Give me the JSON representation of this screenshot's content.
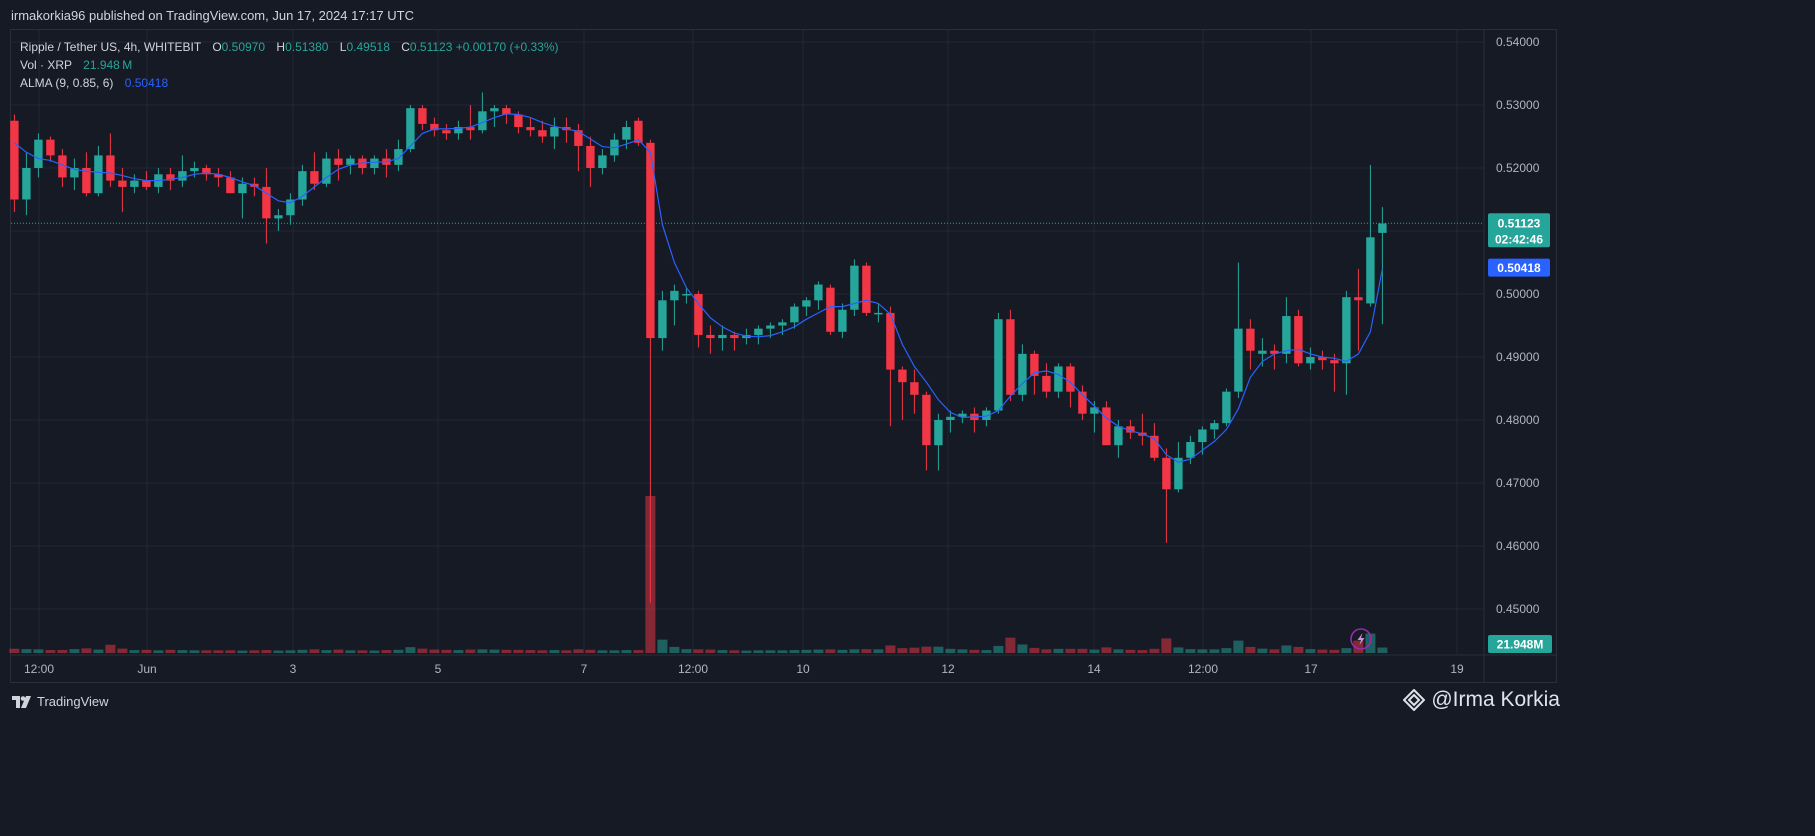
{
  "publisher": "irmakorkia96 published on TradingView.com, Jun 17, 2024 17:17 UTC",
  "legend": {
    "symbol": "Ripple / Tether US, 4h, WHITEBIT",
    "o_label": "O",
    "o_val": "0.50970",
    "h_label": "H",
    "h_val": "0.51380",
    "l_label": "L",
    "l_val": "0.49518",
    "c_label": "C",
    "c_val": "0.51123",
    "change": "+0.00170 (+0.33%)",
    "vol_label": "Vol · XRP",
    "vol_val": "21.948 M",
    "alma_label": "ALMA (9, 0.85, 6)",
    "alma_val": "0.50418"
  },
  "tags": {
    "price": "0.51123",
    "countdown": "02:42:46",
    "alma": "0.50418",
    "volume": "21.948M"
  },
  "footer": {
    "brand": "TradingView",
    "watermark": "@Irma Korkia"
  },
  "colors": {
    "up": "#26a69a",
    "down": "#f23645",
    "alma": "#2962ff",
    "grid": "#232733"
  },
  "chart_data": {
    "type": "candlestick",
    "symbol": "XRPUSDT",
    "interval": "4h",
    "ylim": [
      0.443,
      0.542
    ],
    "y_ticks": [
      "0.54000",
      "0.53000",
      "0.52000",
      "0.51000",
      "0.50000",
      "0.49000",
      "0.48000",
      "0.47000",
      "0.46000",
      "0.45000"
    ],
    "x_ticks": [
      "12:00",
      "Jun",
      "3",
      "5",
      "7",
      "12:00",
      "10",
      "12",
      "14",
      "12:00",
      "17",
      "19"
    ],
    "grid": true,
    "ohlc": [
      [
        0.5275,
        0.5285,
        0.513,
        0.515
      ],
      [
        0.515,
        0.5225,
        0.5125,
        0.52
      ],
      [
        0.52,
        0.5255,
        0.5185,
        0.5245
      ],
      [
        0.5245,
        0.525,
        0.521,
        0.522
      ],
      [
        0.522,
        0.523,
        0.517,
        0.5185
      ],
      [
        0.5185,
        0.5215,
        0.5165,
        0.52
      ],
      [
        0.52,
        0.5225,
        0.5155,
        0.516
      ],
      [
        0.516,
        0.5235,
        0.5155,
        0.522
      ],
      [
        0.522,
        0.5255,
        0.517,
        0.518
      ],
      [
        0.518,
        0.52,
        0.513,
        0.517
      ],
      [
        0.517,
        0.519,
        0.516,
        0.518
      ],
      [
        0.518,
        0.5195,
        0.5165,
        0.517
      ],
      [
        0.517,
        0.52,
        0.516,
        0.519
      ],
      [
        0.519,
        0.52,
        0.5165,
        0.518
      ],
      [
        0.518,
        0.522,
        0.517,
        0.5195
      ],
      [
        0.5195,
        0.521,
        0.5185,
        0.52
      ],
      [
        0.52,
        0.5205,
        0.518,
        0.519
      ],
      [
        0.519,
        0.52,
        0.517,
        0.5185
      ],
      [
        0.5185,
        0.5195,
        0.516,
        0.516
      ],
      [
        0.516,
        0.5185,
        0.512,
        0.5175
      ],
      [
        0.5175,
        0.5185,
        0.5155,
        0.517
      ],
      [
        0.517,
        0.52,
        0.508,
        0.512
      ],
      [
        0.512,
        0.5135,
        0.51,
        0.5125
      ],
      [
        0.5125,
        0.516,
        0.511,
        0.515
      ],
      [
        0.515,
        0.5205,
        0.514,
        0.5195
      ],
      [
        0.5195,
        0.5225,
        0.5165,
        0.5175
      ],
      [
        0.5175,
        0.5225,
        0.517,
        0.5215
      ],
      [
        0.5215,
        0.523,
        0.518,
        0.5205
      ],
      [
        0.5205,
        0.522,
        0.519,
        0.5215
      ],
      [
        0.5215,
        0.522,
        0.519,
        0.52
      ],
      [
        0.52,
        0.522,
        0.519,
        0.5215
      ],
      [
        0.5215,
        0.523,
        0.5185,
        0.5205
      ],
      [
        0.5205,
        0.5245,
        0.5195,
        0.523
      ],
      [
        0.523,
        0.53,
        0.5225,
        0.5295
      ],
      [
        0.5295,
        0.53,
        0.526,
        0.527
      ],
      [
        0.527,
        0.528,
        0.525,
        0.526
      ],
      [
        0.526,
        0.527,
        0.5245,
        0.5255
      ],
      [
        0.5255,
        0.5275,
        0.5245,
        0.5265
      ],
      [
        0.5265,
        0.53,
        0.5245,
        0.526
      ],
      [
        0.526,
        0.532,
        0.5255,
        0.529
      ],
      [
        0.529,
        0.53,
        0.5265,
        0.5295
      ],
      [
        0.5295,
        0.53,
        0.527,
        0.5285
      ],
      [
        0.5285,
        0.529,
        0.5255,
        0.5265
      ],
      [
        0.5265,
        0.528,
        0.525,
        0.526
      ],
      [
        0.526,
        0.5275,
        0.524,
        0.525
      ],
      [
        0.525,
        0.528,
        0.523,
        0.5265
      ],
      [
        0.5265,
        0.528,
        0.524,
        0.526
      ],
      [
        0.526,
        0.527,
        0.5195,
        0.5235
      ],
      [
        0.5235,
        0.525,
        0.517,
        0.52
      ],
      [
        0.52,
        0.523,
        0.519,
        0.522
      ],
      [
        0.522,
        0.5255,
        0.521,
        0.5245
      ],
      [
        0.5245,
        0.5275,
        0.523,
        0.5265
      ],
      [
        0.5275,
        0.528,
        0.5235,
        0.524
      ],
      [
        0.524,
        0.5245,
        0.451,
        0.493
      ],
      [
        0.493,
        0.5005,
        0.491,
        0.499
      ],
      [
        0.499,
        0.5015,
        0.495,
        0.5005
      ],
      [
        0.5,
        0.501,
        0.4985,
        0.5
      ],
      [
        0.5,
        0.5005,
        0.4915,
        0.4935
      ],
      [
        0.4935,
        0.495,
        0.4905,
        0.493
      ],
      [
        0.493,
        0.495,
        0.491,
        0.4935
      ],
      [
        0.4935,
        0.494,
        0.491,
        0.493
      ],
      [
        0.493,
        0.4945,
        0.492,
        0.4935
      ],
      [
        0.4935,
        0.495,
        0.492,
        0.4945
      ],
      [
        0.4945,
        0.4955,
        0.493,
        0.495
      ],
      [
        0.495,
        0.496,
        0.4935,
        0.4955
      ],
      [
        0.4955,
        0.4985,
        0.4945,
        0.498
      ],
      [
        0.498,
        0.4995,
        0.4965,
        0.499
      ],
      [
        0.499,
        0.502,
        0.4975,
        0.5015
      ],
      [
        0.501,
        0.5015,
        0.4935,
        0.494
      ],
      [
        0.494,
        0.4985,
        0.493,
        0.4975
      ],
      [
        0.4975,
        0.5055,
        0.4965,
        0.5045
      ],
      [
        0.5045,
        0.505,
        0.4965,
        0.497
      ],
      [
        0.497,
        0.4985,
        0.4955,
        0.497
      ],
      [
        0.497,
        0.498,
        0.479,
        0.488
      ],
      [
        0.488,
        0.4885,
        0.48,
        0.486
      ],
      [
        0.486,
        0.488,
        0.481,
        0.484
      ],
      [
        0.484,
        0.4845,
        0.472,
        0.476
      ],
      [
        0.476,
        0.481,
        0.472,
        0.48
      ],
      [
        0.48,
        0.4815,
        0.478,
        0.4805
      ],
      [
        0.4805,
        0.4815,
        0.4795,
        0.481
      ],
      [
        0.481,
        0.482,
        0.478,
        0.48
      ],
      [
        0.48,
        0.482,
        0.479,
        0.4815
      ],
      [
        0.4815,
        0.497,
        0.481,
        0.496
      ],
      [
        0.496,
        0.4975,
        0.483,
        0.484
      ],
      [
        0.484,
        0.492,
        0.483,
        0.4905
      ],
      [
        0.4905,
        0.491,
        0.484,
        0.487
      ],
      [
        0.487,
        0.489,
        0.4835,
        0.4845
      ],
      [
        0.4845,
        0.489,
        0.4835,
        0.4885
      ],
      [
        0.4885,
        0.489,
        0.482,
        0.4845
      ],
      [
        0.4845,
        0.4855,
        0.48,
        0.481
      ],
      [
        0.481,
        0.483,
        0.478,
        0.482
      ],
      [
        0.482,
        0.483,
        0.476,
        0.476
      ],
      [
        0.476,
        0.48,
        0.474,
        0.479
      ],
      [
        0.479,
        0.48,
        0.477,
        0.478
      ],
      [
        0.478,
        0.481,
        0.476,
        0.4775
      ],
      [
        0.4775,
        0.4795,
        0.4735,
        0.474
      ],
      [
        0.474,
        0.4755,
        0.4605,
        0.469
      ],
      [
        0.469,
        0.4765,
        0.4685,
        0.474
      ],
      [
        0.474,
        0.4775,
        0.473,
        0.4765
      ],
      [
        0.4765,
        0.479,
        0.4745,
        0.4785
      ],
      [
        0.4785,
        0.48,
        0.477,
        0.4795
      ],
      [
        0.4795,
        0.485,
        0.479,
        0.4845
      ],
      [
        0.4845,
        0.505,
        0.4835,
        0.4945
      ],
      [
        0.4945,
        0.496,
        0.488,
        0.491
      ],
      [
        0.4905,
        0.493,
        0.4885,
        0.491
      ],
      [
        0.491,
        0.492,
        0.488,
        0.4905
      ],
      [
        0.4905,
        0.4995,
        0.489,
        0.4965
      ],
      [
        0.4965,
        0.4975,
        0.4885,
        0.489
      ],
      [
        0.489,
        0.4915,
        0.488,
        0.49
      ],
      [
        0.49,
        0.491,
        0.488,
        0.4895
      ],
      [
        0.4895,
        0.4905,
        0.4845,
        0.489
      ],
      [
        0.489,
        0.5005,
        0.484,
        0.4995
      ],
      [
        0.4995,
        0.504,
        0.491,
        0.499
      ],
      [
        0.4985,
        0.5205,
        0.498,
        0.509
      ],
      [
        0.5097,
        0.5138,
        0.4952,
        0.5112
      ]
    ],
    "alma": [
      0.524,
      0.5225,
      0.5215,
      0.5212,
      0.5205,
      0.5198,
      0.5195,
      0.5193,
      0.5192,
      0.5188,
      0.5183,
      0.518,
      0.518,
      0.5182,
      0.5185,
      0.519,
      0.5192,
      0.519,
      0.5185,
      0.5178,
      0.5172,
      0.516,
      0.5148,
      0.5145,
      0.5155,
      0.517,
      0.5185,
      0.5198,
      0.5205,
      0.5208,
      0.5209,
      0.521,
      0.5215,
      0.5235,
      0.5255,
      0.5262,
      0.5262,
      0.5263,
      0.5265,
      0.5272,
      0.528,
      0.5286,
      0.5285,
      0.528,
      0.5272,
      0.5266,
      0.5262,
      0.5258,
      0.5246,
      0.5234,
      0.5232,
      0.5238,
      0.5245,
      0.5225,
      0.511,
      0.505,
      0.501,
      0.4985,
      0.4962,
      0.4948,
      0.4938,
      0.4933,
      0.4932,
      0.4934,
      0.494,
      0.4948,
      0.496,
      0.497,
      0.498,
      0.498,
      0.4985,
      0.499,
      0.4985,
      0.4968,
      0.492,
      0.4885,
      0.486,
      0.4832,
      0.4812,
      0.4804,
      0.4805,
      0.4806,
      0.4815,
      0.4838,
      0.4858,
      0.4875,
      0.4878,
      0.4872,
      0.486,
      0.484,
      0.4822,
      0.4803,
      0.479,
      0.4783,
      0.4778,
      0.477,
      0.4745,
      0.4733,
      0.4738,
      0.4752,
      0.4766,
      0.4785,
      0.4818,
      0.4868,
      0.4893,
      0.4905,
      0.491,
      0.4912,
      0.4905,
      0.49,
      0.4898,
      0.4893,
      0.4905,
      0.494,
      0.504
    ],
    "volume": [
      0.35,
      0.32,
      0.3,
      0.25,
      0.25,
      0.32,
      0.38,
      0.28,
      0.68,
      0.36,
      0.24,
      0.26,
      0.22,
      0.26,
      0.24,
      0.22,
      0.22,
      0.22,
      0.22,
      0.2,
      0.22,
      0.24,
      0.2,
      0.22,
      0.26,
      0.3,
      0.24,
      0.28,
      0.22,
      0.22,
      0.2,
      0.24,
      0.26,
      0.48,
      0.36,
      0.28,
      0.26,
      0.24,
      0.28,
      0.3,
      0.28,
      0.26,
      0.26,
      0.24,
      0.22,
      0.24,
      0.22,
      0.3,
      0.26,
      0.22,
      0.22,
      0.24,
      0.24,
      12.9,
      1.1,
      0.5,
      0.32,
      0.3,
      0.28,
      0.24,
      0.22,
      0.2,
      0.22,
      0.22,
      0.22,
      0.24,
      0.26,
      0.28,
      0.3,
      0.26,
      0.3,
      0.32,
      0.3,
      0.62,
      0.4,
      0.44,
      0.52,
      0.52,
      0.34,
      0.3,
      0.26,
      0.24,
      0.58,
      1.26,
      0.7,
      0.42,
      0.3,
      0.34,
      0.34,
      0.34,
      0.28,
      0.46,
      0.3,
      0.26,
      0.24,
      0.34,
      1.2,
      0.46,
      0.32,
      0.3,
      0.3,
      0.4,
      1.02,
      0.5,
      0.36,
      0.3,
      0.62,
      0.5,
      0.32,
      0.28,
      0.26,
      0.4,
      1.02,
      1.6,
      0.45
    ]
  }
}
